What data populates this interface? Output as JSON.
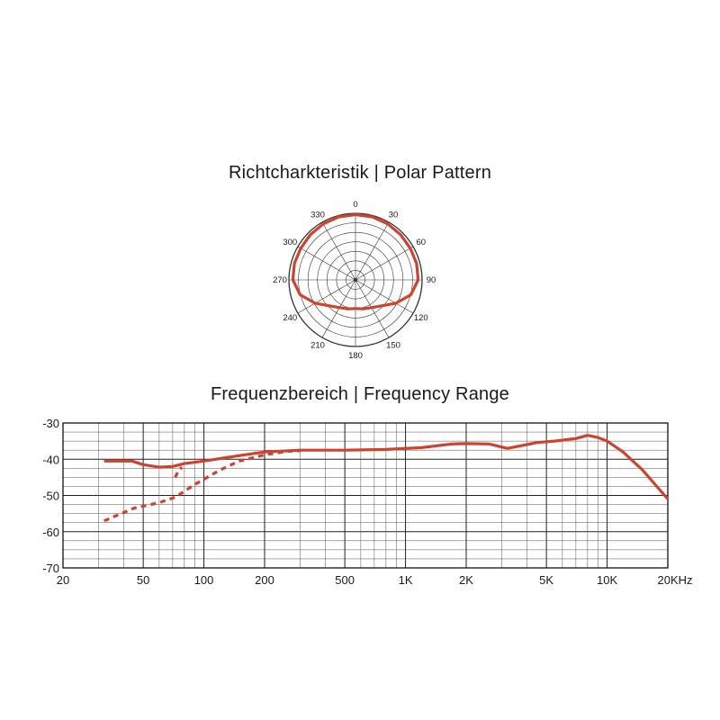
{
  "polar": {
    "title": "Richtcharkteristik | Polar Pattern",
    "color": "#cd4330"
  },
  "frequency": {
    "title": "Frequenzbereich | Frequency Range",
    "color": "#cd4330"
  },
  "chart_data": [
    {
      "type": "polar",
      "title": "Richtcharkteristik | Polar Pattern",
      "angle_labels": [
        "0",
        "30",
        "60",
        "90",
        "120",
        "150",
        "180",
        "210",
        "240",
        "270",
        "300",
        "330"
      ],
      "rings": 7,
      "series": [
        {
          "pattern": "cardioid-like",
          "points": [
            {
              "angle": 0,
              "r": 0.98
            },
            {
              "angle": 15,
              "r": 0.98
            },
            {
              "angle": 30,
              "r": 0.97
            },
            {
              "angle": 45,
              "r": 0.96
            },
            {
              "angle": 60,
              "r": 0.95
            },
            {
              "angle": 75,
              "r": 0.95
            },
            {
              "angle": 90,
              "r": 0.94
            },
            {
              "angle": 105,
              "r": 0.86
            },
            {
              "angle": 120,
              "r": 0.7
            },
            {
              "angle": 135,
              "r": 0.55
            },
            {
              "angle": 150,
              "r": 0.48
            },
            {
              "angle": 165,
              "r": 0.45
            },
            {
              "angle": 180,
              "r": 0.43
            },
            {
              "angle": 195,
              "r": 0.45
            },
            {
              "angle": 210,
              "r": 0.48
            },
            {
              "angle": 225,
              "r": 0.55
            },
            {
              "angle": 240,
              "r": 0.7
            },
            {
              "angle": 255,
              "r": 0.86
            },
            {
              "angle": 270,
              "r": 0.94
            },
            {
              "angle": 285,
              "r": 0.95
            },
            {
              "angle": 300,
              "r": 0.95
            },
            {
              "angle": 315,
              "r": 0.96
            },
            {
              "angle": 330,
              "r": 0.97
            },
            {
              "angle": 345,
              "r": 0.98
            }
          ]
        }
      ]
    },
    {
      "type": "line",
      "title": "Frequenzbereich | Frequency Range",
      "x_scale": "log",
      "xlim": [
        20,
        20000
      ],
      "ylim": [
        -70,
        -30
      ],
      "x_ticks": [
        {
          "value": 20,
          "label": "20"
        },
        {
          "value": 50,
          "label": "50"
        },
        {
          "value": 100,
          "label": "100"
        },
        {
          "value": 200,
          "label": "200"
        },
        {
          "value": 500,
          "label": "500"
        },
        {
          "value": 1000,
          "label": "1K"
        },
        {
          "value": 2000,
          "label": "2K"
        },
        {
          "value": 5000,
          "label": "5K"
        },
        {
          "value": 10000,
          "label": "10K"
        },
        {
          "value": 20000,
          "label": "20KHz"
        }
      ],
      "y_ticks": [
        {
          "value": -30,
          "label": "-30"
        },
        {
          "value": -40,
          "label": "-40"
        },
        {
          "value": -50,
          "label": "-50"
        },
        {
          "value": -60,
          "label": "-60"
        },
        {
          "value": -70,
          "label": "-70"
        }
      ],
      "grid": true,
      "series": [
        {
          "style": "solid",
          "x": [
            32,
            44,
            50,
            60,
            70,
            80,
            100,
            150,
            200,
            300,
            500,
            800,
            1200,
            1700,
            2000,
            2600,
            3200,
            3800,
            4500,
            5500,
            7000,
            8000,
            9000,
            10000,
            12000,
            15000,
            20000
          ],
          "y": [
            -40.5,
            -40.5,
            -41.5,
            -42.2,
            -42,
            -41.2,
            -40.5,
            -39,
            -38,
            -37.5,
            -37.5,
            -37.3,
            -36.8,
            -35.8,
            -35.7,
            -35.8,
            -37,
            -36.2,
            -35.4,
            -35,
            -34.3,
            -33.4,
            -34,
            -35,
            -38,
            -43,
            -51
          ]
        },
        {
          "style": "dashed",
          "x": [
            32,
            45,
            60,
            72,
            90,
            120,
            150,
            200,
            260,
            300
          ],
          "y": [
            -57,
            -53.5,
            -52,
            -50.5,
            -47,
            -43,
            -40.5,
            -38.8,
            -37.8,
            -37.7
          ]
        },
        {
          "style": "dashed",
          "x": [
            72,
            75,
            78
          ],
          "y": [
            -45,
            -43,
            -42.2
          ]
        }
      ]
    }
  ]
}
